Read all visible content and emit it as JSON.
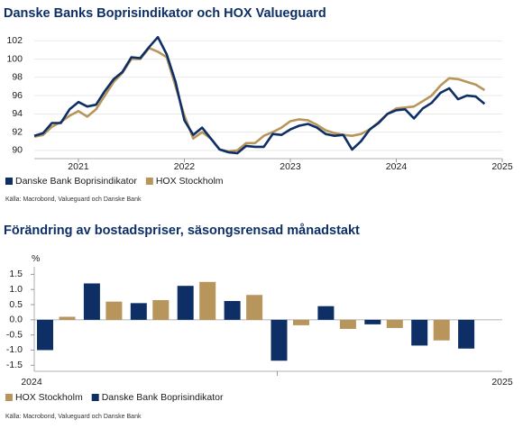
{
  "chart_data": [
    {
      "type": "line",
      "title": "Danske Banks Boprisindikator och HOX Valueguard",
      "source": "Källa: Macrobond, Valueguard och Danske Bank",
      "categories": [
        null,
        null,
        null,
        null,
        null,
        "2021",
        null,
        null,
        null,
        null,
        null,
        null,
        null,
        null,
        null,
        null,
        null,
        "2022",
        null,
        null,
        null,
        null,
        null,
        null,
        null,
        null,
        null,
        null,
        null,
        "2023",
        null,
        null,
        null,
        null,
        null,
        null,
        null,
        null,
        null,
        null,
        null,
        "2024",
        null,
        null,
        null,
        null,
        null,
        null,
        null,
        null,
        null,
        null,
        null,
        "2025"
      ],
      "series": [
        {
          "name": "Danske Bank Boprisindikator",
          "color": "#0d2f66",
          "values": [
            91.6,
            91.9,
            93,
            93,
            94.5,
            95.3,
            94.8,
            95,
            96.5,
            97.8,
            98.6,
            100.2,
            100.1,
            101.3,
            102.4,
            100.5,
            97.5,
            93.3,
            91.7,
            92.5,
            91.3,
            90.1,
            89.8,
            89.7,
            90.5,
            90.4,
            90.4,
            91.8,
            91.7,
            92.3,
            92.7,
            92.9,
            92.5,
            91.8,
            91.6,
            91.7,
            90.1,
            91.0,
            92.3,
            93.0,
            94.0,
            94.4,
            94.5,
            93.5,
            94.6,
            95.2,
            96.3,
            96.8,
            95.6,
            96.0,
            95.9,
            95.1,
            null,
            null
          ]
        },
        {
          "name": "HOX Stockholm",
          "color": "#b8955a",
          "values": [
            91.5,
            91.7,
            92.6,
            93.1,
            93.8,
            94.3,
            93.7,
            94.5,
            96,
            97.5,
            98.5,
            100,
            100,
            101.2,
            100.8,
            100.2,
            97,
            93.8,
            91.3,
            92,
            91.3,
            90.1,
            89.9,
            90,
            90.8,
            90.8,
            91.6,
            92,
            92.5,
            93.2,
            93.4,
            93.3,
            92.8,
            92.2,
            91.9,
            91.7,
            91.6,
            91.8,
            92.3,
            93.1,
            94,
            94.6,
            94.7,
            94.8,
            95.4,
            96,
            97.1,
            97.9,
            97.8,
            97.5,
            97.2,
            96.6,
            null,
            null
          ]
        }
      ],
      "ylim": [
        89.5,
        103.5
      ],
      "yticks": [
        90,
        92,
        94,
        96,
        98,
        100,
        102
      ],
      "grid": true,
      "legend": "bottom"
    },
    {
      "type": "bar",
      "title": "Förändring av bostadspriser, säsongsrensad månadstakt",
      "source": "Källa: Macrobond, Valueguard och Danske Bank",
      "y_unit": "%",
      "x_axis_labels": [
        "2024",
        "2025"
      ],
      "categories": [
        null,
        null,
        null,
        null,
        null,
        null,
        null,
        null,
        null,
        null
      ],
      "series": [
        {
          "name": "HOX Stockholm",
          "color": "#b8955a",
          "values": [
            0.1,
            0.6,
            0.65,
            1.25,
            0.82,
            -0.18,
            -0.3,
            -0.27,
            -0.68,
            null
          ]
        },
        {
          "name": "Danske Bank Boprisindikator",
          "color": "#0d2f66",
          "values": [
            -1.0,
            1.2,
            0.55,
            1.12,
            0.62,
            -1.35,
            0.45,
            -0.15,
            -0.85,
            -0.95
          ]
        }
      ],
      "ylim": [
        -1.7,
        1.75
      ],
      "yticks": [
        -1.5,
        {
          "value": -1.0,
          "label": "-1.0"
        },
        -0.5,
        {
          "value": 0.0,
          "label": "0.0"
        },
        0.5,
        {
          "value": 1.0,
          "label": "1.0"
        },
        1.5
      ],
      "grid": false,
      "legend": "bottom"
    }
  ]
}
